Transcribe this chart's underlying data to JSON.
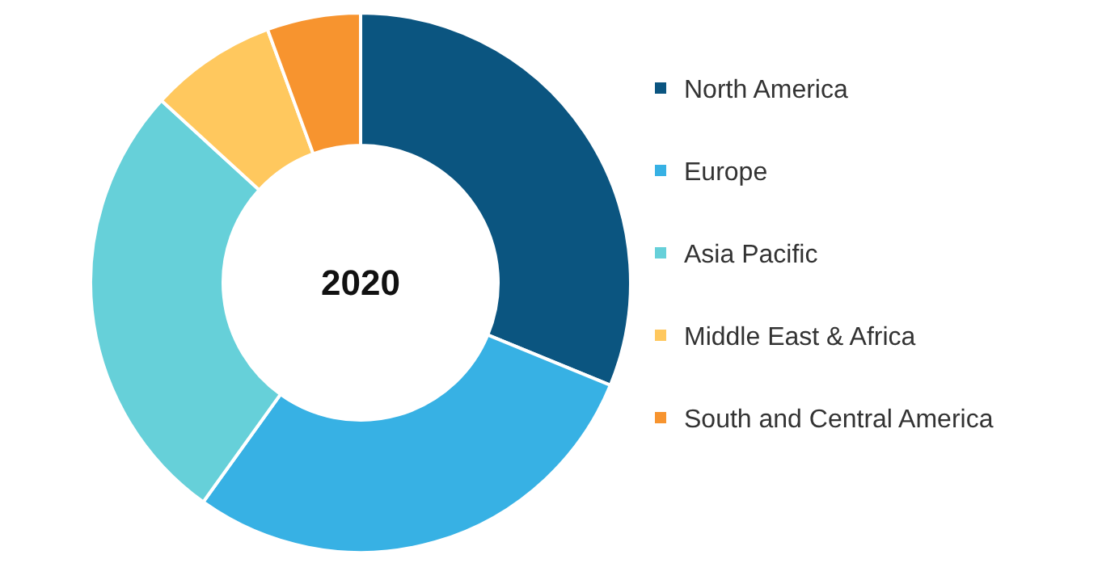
{
  "chart_data": {
    "type": "donut",
    "title": "2020",
    "categories": [
      "North America",
      "Europe",
      "Asia Pacific",
      "Middle East & Africa",
      "South and Central America"
    ],
    "values": [
      31.2,
      28.7,
      26.9,
      7.6,
      5.6
    ],
    "colors": [
      "#0b5580",
      "#37b1e4",
      "#66d0d9",
      "#ffc85e",
      "#f7942f"
    ],
    "legend": "right"
  }
}
